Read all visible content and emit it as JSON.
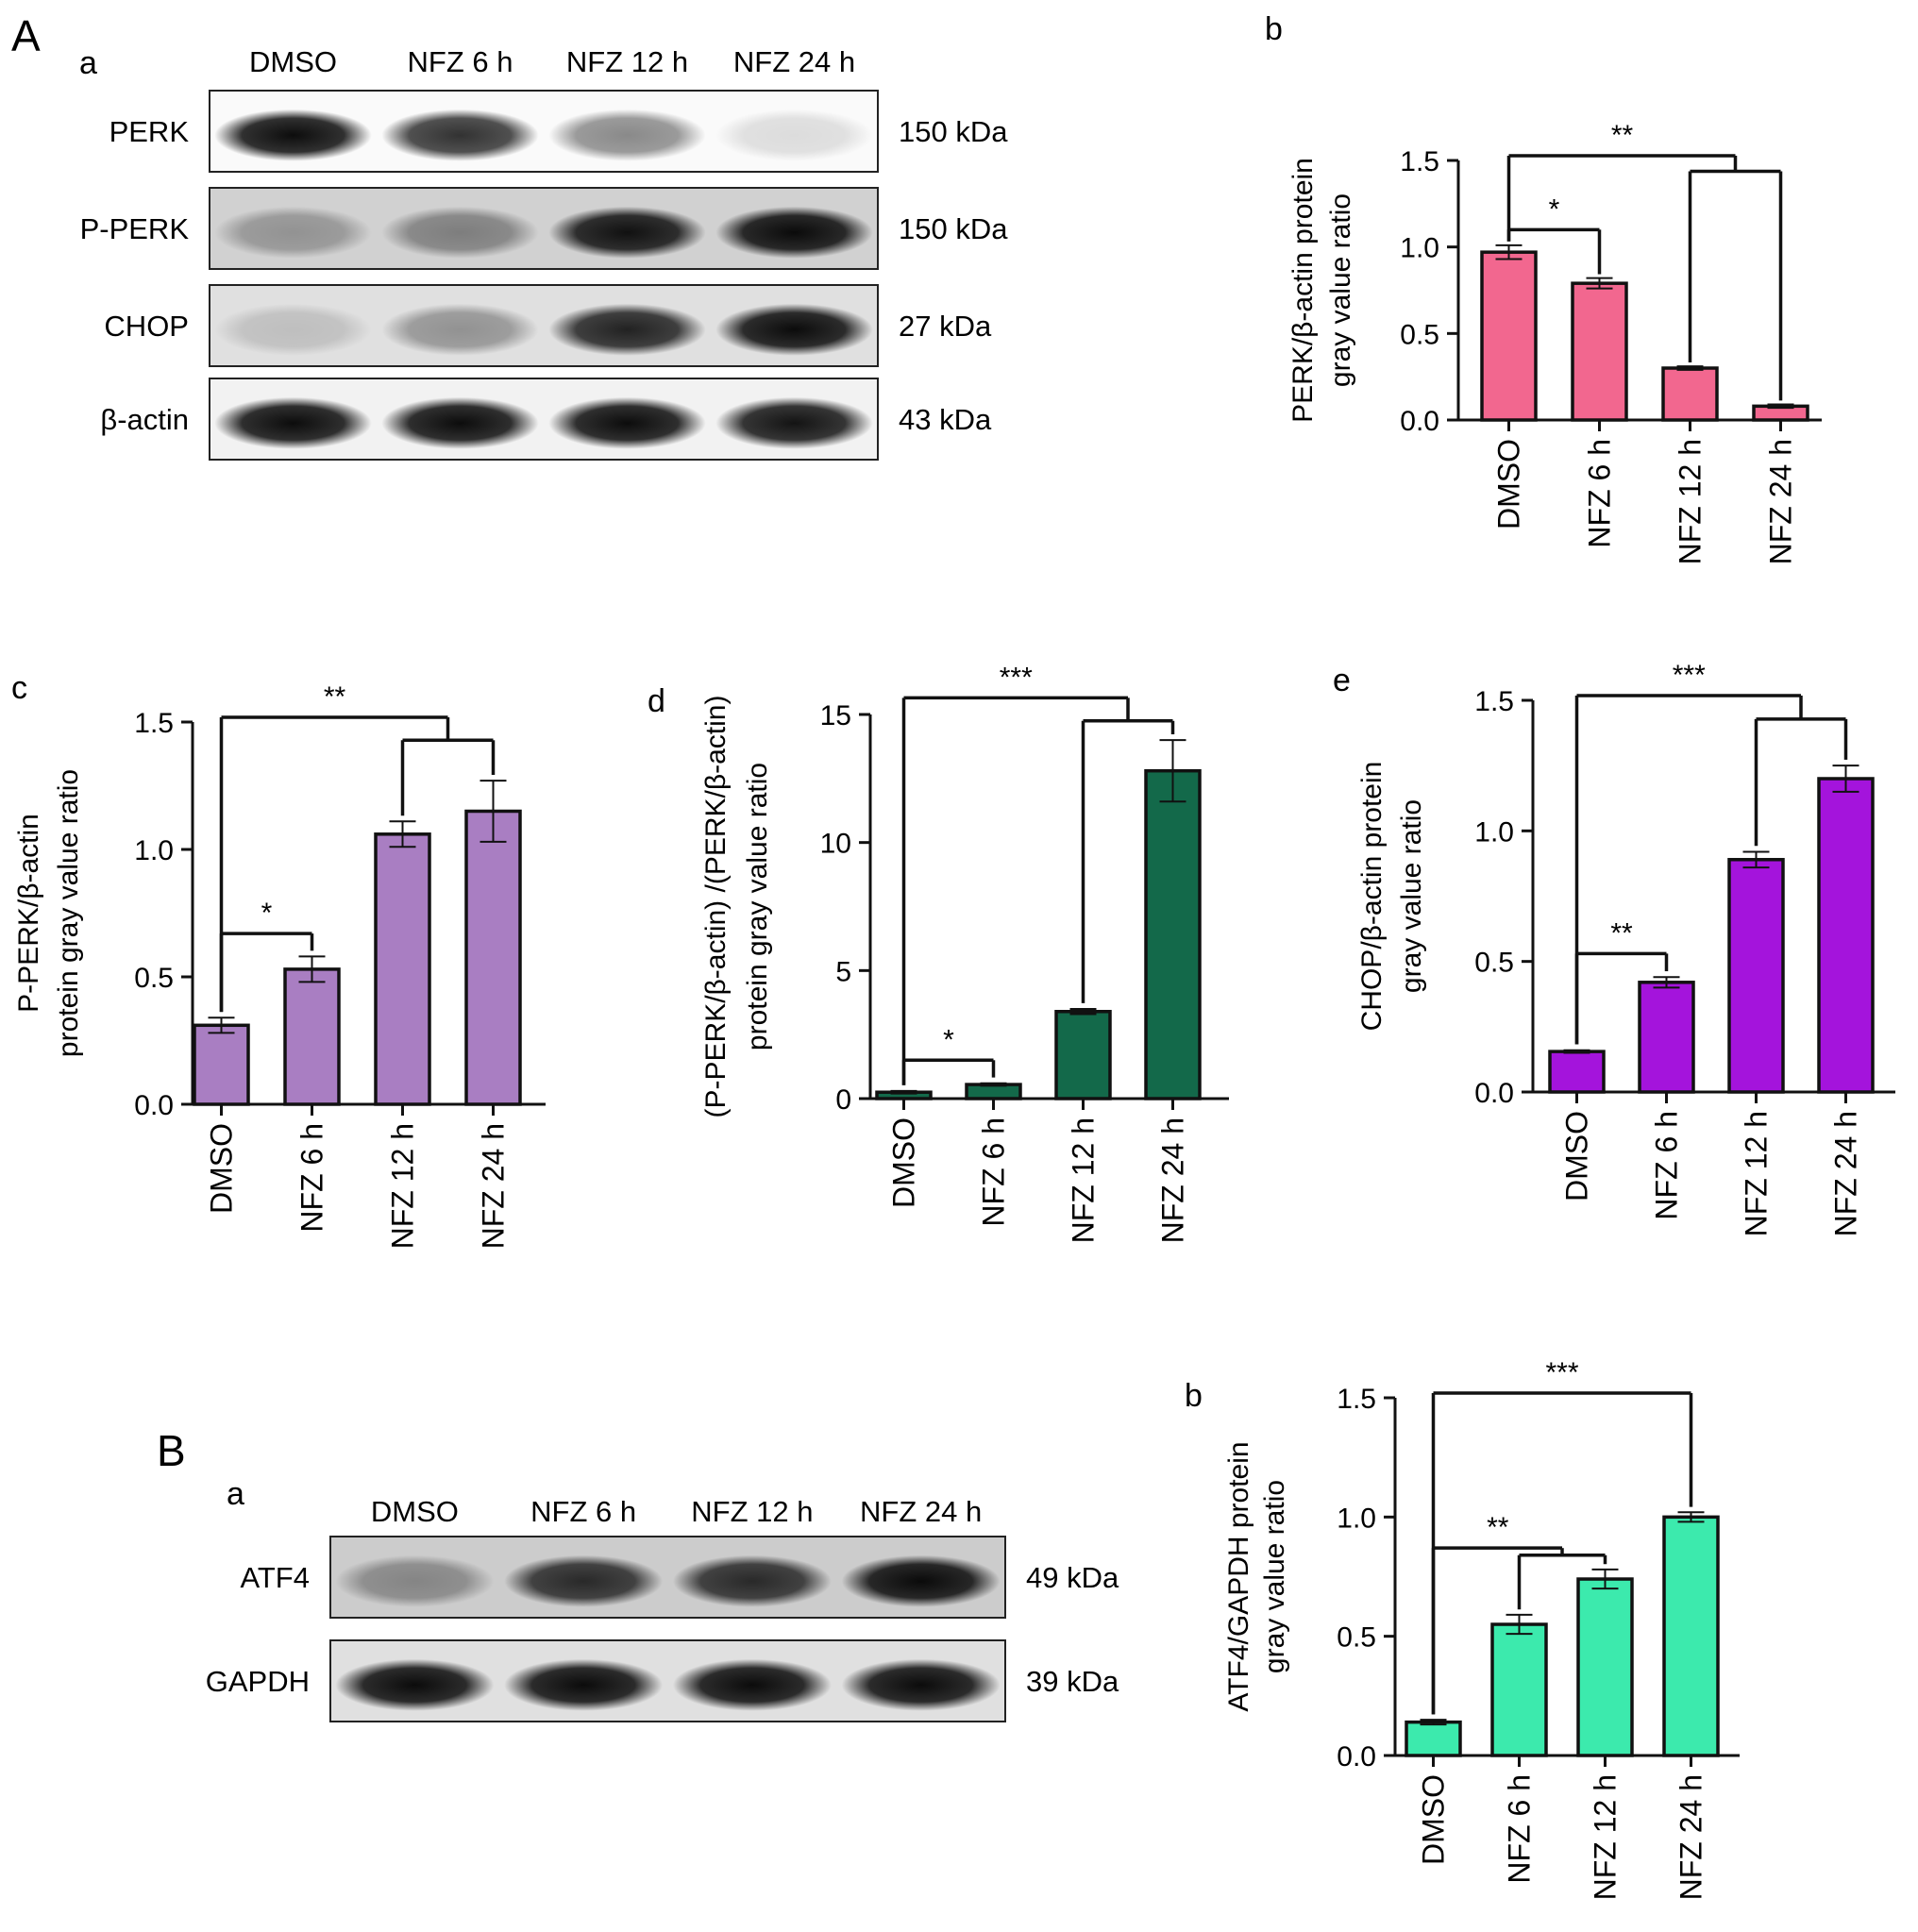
{
  "panels": {
    "A": "A",
    "B": "B"
  },
  "blot_A": {
    "label": "a",
    "lanes": [
      "DMSO",
      "NFZ 6 h",
      "NFZ 12 h",
      "NFZ 24 h"
    ],
    "rows": [
      {
        "name": "PERK",
        "kda": "150 kDa",
        "intensities": [
          0.95,
          0.8,
          0.45,
          0.12
        ],
        "bg": 0.02
      },
      {
        "name": "P-PERK",
        "kda": "150 kDa",
        "intensities": [
          0.3,
          0.4,
          0.92,
          0.95
        ],
        "bg": 0.18
      },
      {
        "name": "CHOP",
        "kda": "27 kDa",
        "intensities": [
          0.15,
          0.35,
          0.85,
          0.95
        ],
        "bg": 0.12
      },
      {
        "name": "β-actin",
        "kda": "43 kDa",
        "intensities": [
          0.95,
          0.95,
          0.95,
          0.92
        ],
        "bg": 0.05
      }
    ]
  },
  "blot_B": {
    "label": "a",
    "lanes": [
      "DMSO",
      "NFZ 6 h",
      "NFZ 12 h",
      "NFZ 24 h"
    ],
    "rows": [
      {
        "name": "ATF4",
        "kda": "49 kDa",
        "intensities": [
          0.35,
          0.8,
          0.8,
          0.95
        ],
        "bg": 0.2
      },
      {
        "name": "GAPDH",
        "kda": "39 kDa",
        "intensities": [
          0.95,
          0.95,
          0.95,
          0.95
        ],
        "bg": 0.12
      }
    ]
  },
  "chart_data": [
    {
      "panel": "b",
      "type": "bar",
      "categories": [
        "DMSO",
        "NFZ 6 h",
        "NFZ 12 h",
        "NFZ 24 h"
      ],
      "values": [
        0.97,
        0.79,
        0.3,
        0.08
      ],
      "errors": [
        0.04,
        0.03,
        0.01,
        0.01
      ],
      "ylabel": [
        "PERK/β-actin protein",
        "gray value ratio"
      ],
      "yticks": [
        "0.0",
        "0.5",
        "1.0",
        "1.5"
      ],
      "ylim": [
        0,
        1.5
      ],
      "color": "#f2678f",
      "significance": [
        {
          "from": [
            0
          ],
          "to": [
            1
          ],
          "label": "*"
        },
        {
          "from": [
            0
          ],
          "to": [
            2,
            3
          ],
          "label": "**"
        }
      ]
    },
    {
      "panel": "c",
      "type": "bar",
      "categories": [
        "DMSO",
        "NFZ 6 h",
        "NFZ 12 h",
        "NFZ 24 h"
      ],
      "values": [
        0.31,
        0.53,
        1.06,
        1.15
      ],
      "errors": [
        0.03,
        0.05,
        0.05,
        0.12
      ],
      "ylabel": [
        "P-PERK/β-actin",
        "protein gray value ratio"
      ],
      "yticks": [
        "0.0",
        "0.5",
        "1.0",
        "1.5"
      ],
      "ylim": [
        0,
        1.5
      ],
      "color": "#a97ec2",
      "significance": [
        {
          "from": [
            0
          ],
          "to": [
            1
          ],
          "label": "*"
        },
        {
          "from": [
            0
          ],
          "to": [
            2,
            3
          ],
          "label": "**"
        }
      ]
    },
    {
      "panel": "d",
      "type": "bar",
      "categories": [
        "DMSO",
        "NFZ 6 h",
        "NFZ 12 h",
        "NFZ 24 h"
      ],
      "values": [
        0.25,
        0.55,
        3.4,
        12.8
      ],
      "errors": [
        0.05,
        0.05,
        0.1,
        1.2
      ],
      "ylabel": [
        "(P-PERK/β-actin) /(PERK/β-actin)",
        "protein gray value ratio"
      ],
      "yticks": [
        "0",
        "5",
        "10",
        "15"
      ],
      "ylim": [
        0,
        15
      ],
      "color": "#13694a",
      "significance": [
        {
          "from": [
            0
          ],
          "to": [
            1
          ],
          "label": "*"
        },
        {
          "from": [
            0
          ],
          "to": [
            2,
            3
          ],
          "label": "***"
        }
      ]
    },
    {
      "panel": "e",
      "type": "bar",
      "categories": [
        "DMSO",
        "NFZ 6 h",
        "NFZ 12 h",
        "NFZ 24 h"
      ],
      "values": [
        0.155,
        0.42,
        0.89,
        1.2
      ],
      "errors": [
        0.005,
        0.02,
        0.03,
        0.05
      ],
      "ylabel": [
        "CHOP/β-actin protein",
        "gray value ratio"
      ],
      "yticks": [
        "0.0",
        "0.5",
        "1.0",
        "1.5"
      ],
      "ylim": [
        0,
        1.5
      ],
      "color": "#a414dc",
      "significance": [
        {
          "from": [
            0
          ],
          "to": [
            1
          ],
          "label": "**"
        },
        {
          "from": [
            0
          ],
          "to": [
            2,
            3
          ],
          "label": "***"
        }
      ]
    },
    {
      "panel": "b",
      "type": "bar",
      "categories": [
        "DMSO",
        "NFZ 6 h",
        "NFZ 12 h",
        "NFZ 24 h"
      ],
      "values": [
        0.14,
        0.55,
        0.74,
        1.0
      ],
      "errors": [
        0.01,
        0.04,
        0.04,
        0.02
      ],
      "ylabel": [
        "ATF4/GAPDH protein",
        "gray value ratio"
      ],
      "yticks": [
        "0.0",
        "0.5",
        "1.0",
        "1.5"
      ],
      "ylim": [
        0,
        1.5
      ],
      "color": "#3ceaad",
      "significance": [
        {
          "from": [
            0
          ],
          "to": [
            1,
            2
          ],
          "label": "**"
        },
        {
          "from": [
            0
          ],
          "to": [
            3
          ],
          "label": "***"
        }
      ]
    }
  ]
}
